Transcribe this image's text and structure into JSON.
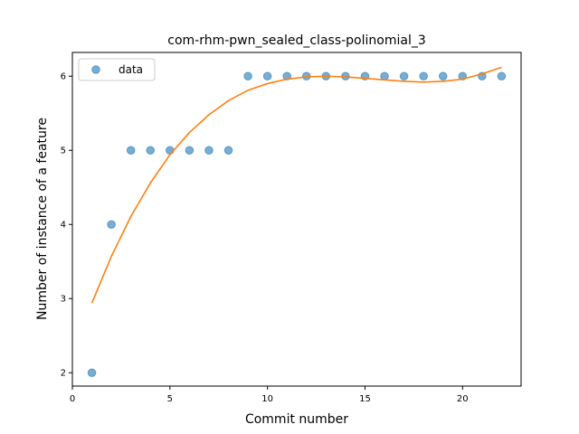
{
  "chart_data": {
    "type": "scatter",
    "title": "com-rhm-pwn_sealed_class-polinomial_3",
    "xlabel": "Commit number",
    "ylabel": "Number of instance of a feature",
    "xlim": [
      0,
      23
    ],
    "ylim": [
      1.82,
      6.32
    ],
    "xticks": [
      0,
      5,
      10,
      15,
      20
    ],
    "yticks": [
      2,
      3,
      4,
      5,
      6
    ],
    "grid": false,
    "legend": {
      "placement": "top-left",
      "entries": [
        "data"
      ]
    },
    "series": [
      {
        "name": "data",
        "kind": "points",
        "color": "#1f77b4",
        "x": [
          1,
          2,
          3,
          4,
          5,
          6,
          7,
          8,
          9,
          10,
          11,
          12,
          13,
          14,
          15,
          16,
          17,
          18,
          19,
          20,
          21,
          22
        ],
        "y": [
          2,
          4,
          5,
          5,
          5,
          5,
          5,
          5,
          6,
          6,
          6,
          6,
          6,
          6,
          6,
          6,
          6,
          6,
          6,
          6,
          6,
          6
        ]
      },
      {
        "kind": "line",
        "color": "#ff7f0e",
        "x": [
          1,
          2,
          3,
          4,
          5,
          6,
          7,
          8,
          9,
          10,
          11,
          12,
          13,
          14,
          15,
          16,
          17,
          18,
          19,
          20,
          21,
          22
        ],
        "y": [
          2.94,
          3.57,
          4.11,
          4.56,
          4.94,
          5.24,
          5.48,
          5.67,
          5.81,
          5.9,
          5.96,
          5.99,
          6.0,
          5.99,
          5.97,
          5.95,
          5.93,
          5.92,
          5.93,
          5.96,
          6.03,
          6.12
        ]
      }
    ]
  }
}
